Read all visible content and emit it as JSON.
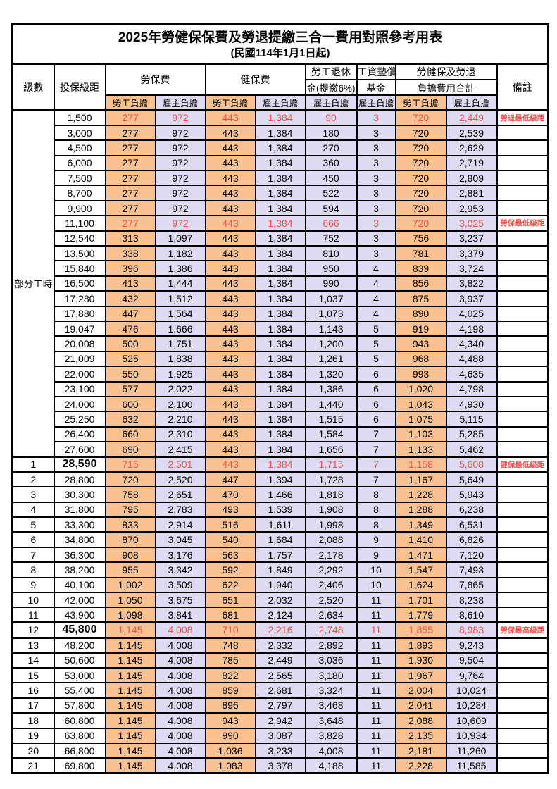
{
  "title": "2025年勞健保保費及勞退提繳三合一費用對照參考用表",
  "subtitle": "(民國114年1月1日起)",
  "header": {
    "level": "級數",
    "bracket": "投保級距",
    "labor_insurance": "勞保費",
    "health_insurance": "健保費",
    "pension_line1": "勞工退休",
    "pension_line2": "金(提繳6%)",
    "wage_fund_line1": "工資墊償",
    "wage_fund_line2": "基金",
    "total_line1": "勞健保及勞退",
    "total_line2": "負擔費用合計",
    "remark": "備註",
    "employee": "勞工負擔",
    "employer": "雇主負擔"
  },
  "part_time_label": "部分工時",
  "colors": {
    "employee_fill": "#FAC291",
    "employer_fill": "#DEDAF1",
    "highlight_text": "#F0514C",
    "remark_text": "#FF4A4A",
    "border": "#000000"
  },
  "rows": [
    {
      "level": "",
      "bracket": "1,500",
      "li_emp": "277",
      "li_er": "972",
      "hi_emp": "443",
      "hi_er": "1,384",
      "pension": "90",
      "fund": "3",
      "tot_emp": "720",
      "tot_er": "2,449",
      "remark": "勞退最低級距",
      "highlight": true,
      "bold": false
    },
    {
      "level": "",
      "bracket": "3,000",
      "li_emp": "277",
      "li_er": "972",
      "hi_emp": "443",
      "hi_er": "1,384",
      "pension": "180",
      "fund": "3",
      "tot_emp": "720",
      "tot_er": "2,539",
      "remark": "",
      "highlight": false,
      "bold": false
    },
    {
      "level": "",
      "bracket": "4,500",
      "li_emp": "277",
      "li_er": "972",
      "hi_emp": "443",
      "hi_er": "1,384",
      "pension": "270",
      "fund": "3",
      "tot_emp": "720",
      "tot_er": "2,629",
      "remark": "",
      "highlight": false,
      "bold": false
    },
    {
      "level": "",
      "bracket": "6,000",
      "li_emp": "277",
      "li_er": "972",
      "hi_emp": "443",
      "hi_er": "1,384",
      "pension": "360",
      "fund": "3",
      "tot_emp": "720",
      "tot_er": "2,719",
      "remark": "",
      "highlight": false,
      "bold": false
    },
    {
      "level": "",
      "bracket": "7,500",
      "li_emp": "277",
      "li_er": "972",
      "hi_emp": "443",
      "hi_er": "1,384",
      "pension": "450",
      "fund": "3",
      "tot_emp": "720",
      "tot_er": "2,809",
      "remark": "",
      "highlight": false,
      "bold": false
    },
    {
      "level": "",
      "bracket": "8,700",
      "li_emp": "277",
      "li_er": "972",
      "hi_emp": "443",
      "hi_er": "1,384",
      "pension": "522",
      "fund": "3",
      "tot_emp": "720",
      "tot_er": "2,881",
      "remark": "",
      "highlight": false,
      "bold": false
    },
    {
      "level": "",
      "bracket": "9,900",
      "li_emp": "277",
      "li_er": "972",
      "hi_emp": "443",
      "hi_er": "1,384",
      "pension": "594",
      "fund": "3",
      "tot_emp": "720",
      "tot_er": "2,953",
      "remark": "",
      "highlight": false,
      "bold": false
    },
    {
      "level": "",
      "bracket": "11,100",
      "li_emp": "277",
      "li_er": "972",
      "hi_emp": "443",
      "hi_er": "1,384",
      "pension": "666",
      "fund": "3",
      "tot_emp": "720",
      "tot_er": "3,025",
      "remark": "勞保最低級距",
      "highlight": true,
      "bold": false
    },
    {
      "level": "",
      "bracket": "12,540",
      "li_emp": "313",
      "li_er": "1,097",
      "hi_emp": "443",
      "hi_er": "1,384",
      "pension": "752",
      "fund": "3",
      "tot_emp": "756",
      "tot_er": "3,237",
      "remark": "",
      "highlight": false,
      "bold": false
    },
    {
      "level": "",
      "bracket": "13,500",
      "li_emp": "338",
      "li_er": "1,182",
      "hi_emp": "443",
      "hi_er": "1,384",
      "pension": "810",
      "fund": "3",
      "tot_emp": "781",
      "tot_er": "3,379",
      "remark": "",
      "highlight": false,
      "bold": false
    },
    {
      "level": "",
      "bracket": "15,840",
      "li_emp": "396",
      "li_er": "1,386",
      "hi_emp": "443",
      "hi_er": "1,384",
      "pension": "950",
      "fund": "4",
      "tot_emp": "839",
      "tot_er": "3,724",
      "remark": "",
      "highlight": false,
      "bold": false
    },
    {
      "level": "",
      "bracket": "16,500",
      "li_emp": "413",
      "li_er": "1,444",
      "hi_emp": "443",
      "hi_er": "1,384",
      "pension": "990",
      "fund": "4",
      "tot_emp": "856",
      "tot_er": "3,822",
      "remark": "",
      "highlight": false,
      "bold": false
    },
    {
      "level": "",
      "bracket": "17,280",
      "li_emp": "432",
      "li_er": "1,512",
      "hi_emp": "443",
      "hi_er": "1,384",
      "pension": "1,037",
      "fund": "4",
      "tot_emp": "875",
      "tot_er": "3,937",
      "remark": "",
      "highlight": false,
      "bold": false
    },
    {
      "level": "",
      "bracket": "17,880",
      "li_emp": "447",
      "li_er": "1,564",
      "hi_emp": "443",
      "hi_er": "1,384",
      "pension": "1,073",
      "fund": "4",
      "tot_emp": "890",
      "tot_er": "4,025",
      "remark": "",
      "highlight": false,
      "bold": false
    },
    {
      "level": "",
      "bracket": "19,047",
      "li_emp": "476",
      "li_er": "1,666",
      "hi_emp": "443",
      "hi_er": "1,384",
      "pension": "1,143",
      "fund": "5",
      "tot_emp": "919",
      "tot_er": "4,198",
      "remark": "",
      "highlight": false,
      "bold": false
    },
    {
      "level": "",
      "bracket": "20,008",
      "li_emp": "500",
      "li_er": "1,751",
      "hi_emp": "443",
      "hi_er": "1,384",
      "pension": "1,200",
      "fund": "5",
      "tot_emp": "943",
      "tot_er": "4,340",
      "remark": "",
      "highlight": false,
      "bold": false
    },
    {
      "level": "",
      "bracket": "21,009",
      "li_emp": "525",
      "li_er": "1,838",
      "hi_emp": "443",
      "hi_er": "1,384",
      "pension": "1,261",
      "fund": "5",
      "tot_emp": "968",
      "tot_er": "4,488",
      "remark": "",
      "highlight": false,
      "bold": false
    },
    {
      "level": "",
      "bracket": "22,000",
      "li_emp": "550",
      "li_er": "1,925",
      "hi_emp": "443",
      "hi_er": "1,384",
      "pension": "1,320",
      "fund": "6",
      "tot_emp": "993",
      "tot_er": "4,635",
      "remark": "",
      "highlight": false,
      "bold": false
    },
    {
      "level": "",
      "bracket": "23,100",
      "li_emp": "577",
      "li_er": "2,022",
      "hi_emp": "443",
      "hi_er": "1,384",
      "pension": "1,386",
      "fund": "6",
      "tot_emp": "1,020",
      "tot_er": "4,798",
      "remark": "",
      "highlight": false,
      "bold": false
    },
    {
      "level": "",
      "bracket": "24,000",
      "li_emp": "600",
      "li_er": "2,100",
      "hi_emp": "443",
      "hi_er": "1,384",
      "pension": "1,440",
      "fund": "6",
      "tot_emp": "1,043",
      "tot_er": "4,930",
      "remark": "",
      "highlight": false,
      "bold": false
    },
    {
      "level": "",
      "bracket": "25,250",
      "li_emp": "632",
      "li_er": "2,210",
      "hi_emp": "443",
      "hi_er": "1,384",
      "pension": "1,515",
      "fund": "6",
      "tot_emp": "1,075",
      "tot_er": "5,115",
      "remark": "",
      "highlight": false,
      "bold": false
    },
    {
      "level": "",
      "bracket": "26,400",
      "li_emp": "660",
      "li_er": "2,310",
      "hi_emp": "443",
      "hi_er": "1,384",
      "pension": "1,584",
      "fund": "7",
      "tot_emp": "1,103",
      "tot_er": "5,285",
      "remark": "",
      "highlight": false,
      "bold": false
    },
    {
      "level": "",
      "bracket": "27,600",
      "li_emp": "690",
      "li_er": "2,415",
      "hi_emp": "443",
      "hi_er": "1,384",
      "pension": "1,656",
      "fund": "7",
      "tot_emp": "1,133",
      "tot_er": "5,462",
      "remark": "",
      "highlight": false,
      "bold": false
    },
    {
      "level": "1",
      "bracket": "28,590",
      "li_emp": "715",
      "li_er": "2,501",
      "hi_emp": "443",
      "hi_er": "1,384",
      "pension": "1,715",
      "fund": "7",
      "tot_emp": "1,158",
      "tot_er": "5,608",
      "remark": "健保最低級距",
      "highlight": true,
      "bold": true
    },
    {
      "level": "2",
      "bracket": "28,800",
      "li_emp": "720",
      "li_er": "2,520",
      "hi_emp": "447",
      "hi_er": "1,394",
      "pension": "1,728",
      "fund": "7",
      "tot_emp": "1,167",
      "tot_er": "5,649",
      "remark": "",
      "highlight": false,
      "bold": false
    },
    {
      "level": "3",
      "bracket": "30,300",
      "li_emp": "758",
      "li_er": "2,651",
      "hi_emp": "470",
      "hi_er": "1,466",
      "pension": "1,818",
      "fund": "8",
      "tot_emp": "1,228",
      "tot_er": "5,943",
      "remark": "",
      "highlight": false,
      "bold": false
    },
    {
      "level": "4",
      "bracket": "31,800",
      "li_emp": "795",
      "li_er": "2,783",
      "hi_emp": "493",
      "hi_er": "1,539",
      "pension": "1,908",
      "fund": "8",
      "tot_emp": "1,288",
      "tot_er": "6,238",
      "remark": "",
      "highlight": false,
      "bold": false
    },
    {
      "level": "5",
      "bracket": "33,300",
      "li_emp": "833",
      "li_er": "2,914",
      "hi_emp": "516",
      "hi_er": "1,611",
      "pension": "1,998",
      "fund": "8",
      "tot_emp": "1,349",
      "tot_er": "6,531",
      "remark": "",
      "highlight": false,
      "bold": false
    },
    {
      "level": "6",
      "bracket": "34,800",
      "li_emp": "870",
      "li_er": "3,045",
      "hi_emp": "540",
      "hi_er": "1,684",
      "pension": "2,088",
      "fund": "9",
      "tot_emp": "1,410",
      "tot_er": "6,826",
      "remark": "",
      "highlight": false,
      "bold": false
    },
    {
      "level": "7",
      "bracket": "36,300",
      "li_emp": "908",
      "li_er": "3,176",
      "hi_emp": "563",
      "hi_er": "1,757",
      "pension": "2,178",
      "fund": "9",
      "tot_emp": "1,471",
      "tot_er": "7,120",
      "remark": "",
      "highlight": false,
      "bold": false
    },
    {
      "level": "8",
      "bracket": "38,200",
      "li_emp": "955",
      "li_er": "3,342",
      "hi_emp": "592",
      "hi_er": "1,849",
      "pension": "2,292",
      "fund": "10",
      "tot_emp": "1,547",
      "tot_er": "7,493",
      "remark": "",
      "highlight": false,
      "bold": false
    },
    {
      "level": "9",
      "bracket": "40,100",
      "li_emp": "1,002",
      "li_er": "3,509",
      "hi_emp": "622",
      "hi_er": "1,940",
      "pension": "2,406",
      "fund": "10",
      "tot_emp": "1,624",
      "tot_er": "7,865",
      "remark": "",
      "highlight": false,
      "bold": false
    },
    {
      "level": "10",
      "bracket": "42,000",
      "li_emp": "1,050",
      "li_er": "3,675",
      "hi_emp": "651",
      "hi_er": "2,032",
      "pension": "2,520",
      "fund": "11",
      "tot_emp": "1,701",
      "tot_er": "8,238",
      "remark": "",
      "highlight": false,
      "bold": false
    },
    {
      "level": "11",
      "bracket": "43,900",
      "li_emp": "1,098",
      "li_er": "3,841",
      "hi_emp": "681",
      "hi_er": "2,124",
      "pension": "2,634",
      "fund": "11",
      "tot_emp": "1,779",
      "tot_er": "8,610",
      "remark": "",
      "highlight": false,
      "bold": false
    },
    {
      "level": "12",
      "bracket": "45,800",
      "li_emp": "1,145",
      "li_er": "4,008",
      "hi_emp": "710",
      "hi_er": "2,216",
      "pension": "2,748",
      "fund": "11",
      "tot_emp": "1,855",
      "tot_er": "8,983",
      "remark": "勞保最高級距",
      "highlight": true,
      "bold": true
    },
    {
      "level": "13",
      "bracket": "48,200",
      "li_emp": "1,145",
      "li_er": "4,008",
      "hi_emp": "748",
      "hi_er": "2,332",
      "pension": "2,892",
      "fund": "11",
      "tot_emp": "1,893",
      "tot_er": "9,243",
      "remark": "",
      "highlight": false,
      "bold": false
    },
    {
      "level": "14",
      "bracket": "50,600",
      "li_emp": "1,145",
      "li_er": "4,008",
      "hi_emp": "785",
      "hi_er": "2,449",
      "pension": "3,036",
      "fund": "11",
      "tot_emp": "1,930",
      "tot_er": "9,504",
      "remark": "",
      "highlight": false,
      "bold": false
    },
    {
      "level": "15",
      "bracket": "53,000",
      "li_emp": "1,145",
      "li_er": "4,008",
      "hi_emp": "822",
      "hi_er": "2,565",
      "pension": "3,180",
      "fund": "11",
      "tot_emp": "1,967",
      "tot_er": "9,764",
      "remark": "",
      "highlight": false,
      "bold": false
    },
    {
      "level": "16",
      "bracket": "55,400",
      "li_emp": "1,145",
      "li_er": "4,008",
      "hi_emp": "859",
      "hi_er": "2,681",
      "pension": "3,324",
      "fund": "11",
      "tot_emp": "2,004",
      "tot_er": "10,024",
      "remark": "",
      "highlight": false,
      "bold": false
    },
    {
      "level": "17",
      "bracket": "57,800",
      "li_emp": "1,145",
      "li_er": "4,008",
      "hi_emp": "896",
      "hi_er": "2,797",
      "pension": "3,468",
      "fund": "11",
      "tot_emp": "2,041",
      "tot_er": "10,284",
      "remark": "",
      "highlight": false,
      "bold": false
    },
    {
      "level": "18",
      "bracket": "60,800",
      "li_emp": "1,145",
      "li_er": "4,008",
      "hi_emp": "943",
      "hi_er": "2,942",
      "pension": "3,648",
      "fund": "11",
      "tot_emp": "2,088",
      "tot_er": "10,609",
      "remark": "",
      "highlight": false,
      "bold": false
    },
    {
      "level": "19",
      "bracket": "63,800",
      "li_emp": "1,145",
      "li_er": "4,008",
      "hi_emp": "990",
      "hi_er": "3,087",
      "pension": "3,828",
      "fund": "11",
      "tot_emp": "2,135",
      "tot_er": "10,934",
      "remark": "",
      "highlight": false,
      "bold": false
    },
    {
      "level": "20",
      "bracket": "66,800",
      "li_emp": "1,145",
      "li_er": "4,008",
      "hi_emp": "1,036",
      "hi_er": "3,233",
      "pension": "4,008",
      "fund": "11",
      "tot_emp": "2,181",
      "tot_er": "11,260",
      "remark": "",
      "highlight": false,
      "bold": false
    },
    {
      "level": "21",
      "bracket": "69,800",
      "li_emp": "1,145",
      "li_er": "4,008",
      "hi_emp": "1,083",
      "hi_er": "3,378",
      "pension": "4,188",
      "fund": "11",
      "tot_emp": "2,228",
      "tot_er": "11,585",
      "remark": "",
      "highlight": false,
      "bold": false
    }
  ]
}
